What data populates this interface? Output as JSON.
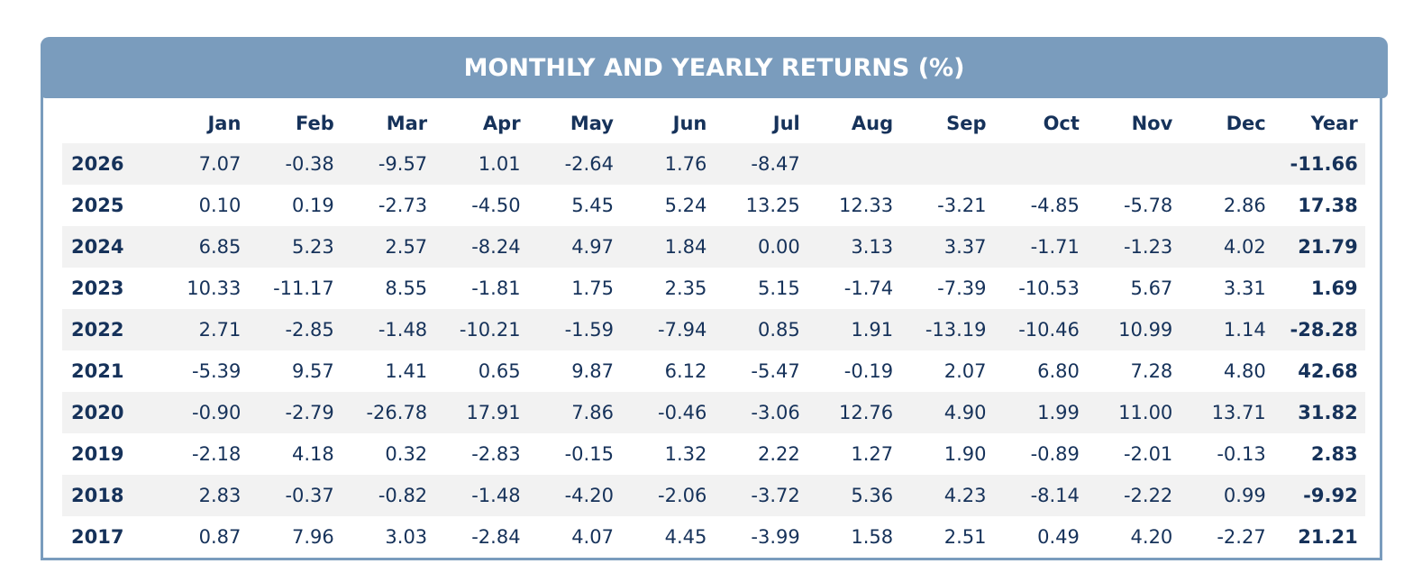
{
  "title": "MONTHLY AND YEARLY RETURNS (%)",
  "columns": [
    "",
    "Jan",
    "Feb",
    "Mar",
    "Apr",
    "May",
    "Jun",
    "Jul",
    "Aug",
    "Sep",
    "Oct",
    "Nov",
    "Dec",
    "Year"
  ],
  "rows": [
    {
      "year": "2026",
      "values": [
        "7.07",
        "-0.38",
        "-9.57",
        "1.01",
        "-2.64",
        "1.76",
        "-8.47",
        "",
        "",
        "",
        "",
        ""
      ],
      "total": "-11.66"
    },
    {
      "year": "2025",
      "values": [
        "0.10",
        "0.19",
        "-2.73",
        "-4.50",
        "5.45",
        "5.24",
        "13.25",
        "12.33",
        "-3.21",
        "-4.85",
        "-5.78",
        "2.86"
      ],
      "total": "17.38"
    },
    {
      "year": "2024",
      "values": [
        "6.85",
        "5.23",
        "2.57",
        "-8.24",
        "4.97",
        "1.84",
        "0.00",
        "3.13",
        "3.37",
        "-1.71",
        "-1.23",
        "4.02"
      ],
      "total": "21.79"
    },
    {
      "year": "2023",
      "values": [
        "10.33",
        "-11.17",
        "8.55",
        "-1.81",
        "1.75",
        "2.35",
        "5.15",
        "-1.74",
        "-7.39",
        "-10.53",
        "5.67",
        "3.31"
      ],
      "total": "1.69"
    },
    {
      "year": "2022",
      "values": [
        "2.71",
        "-2.85",
        "-1.48",
        "-10.21",
        "-1.59",
        "-7.94",
        "0.85",
        "1.91",
        "-13.19",
        "-10.46",
        "10.99",
        "1.14"
      ],
      "total": "-28.28"
    },
    {
      "year": "2021",
      "values": [
        "-5.39",
        "9.57",
        "1.41",
        "0.65",
        "9.87",
        "6.12",
        "-5.47",
        "-0.19",
        "2.07",
        "6.80",
        "7.28",
        "4.80"
      ],
      "total": "42.68"
    },
    {
      "year": "2020",
      "values": [
        "-0.90",
        "-2.79",
        "-26.78",
        "17.91",
        "7.86",
        "-0.46",
        "-3.06",
        "12.76",
        "4.90",
        "1.99",
        "11.00",
        "13.71"
      ],
      "total": "31.82"
    },
    {
      "year": "2019",
      "values": [
        "-2.18",
        "4.18",
        "0.32",
        "-2.83",
        "-0.15",
        "1.32",
        "2.22",
        "1.27",
        "1.90",
        "-0.89",
        "-2.01",
        "-0.13"
      ],
      "total": "2.83"
    },
    {
      "year": "2018",
      "values": [
        "2.83",
        "-0.37",
        "-0.82",
        "-1.48",
        "-4.20",
        "-2.06",
        "-3.72",
        "5.36",
        "4.23",
        "-8.14",
        "-2.22",
        "0.99"
      ],
      "total": "-9.92"
    },
    {
      "year": "2017",
      "values": [
        "0.87",
        "7.96",
        "3.03",
        "-2.84",
        "4.07",
        "4.45",
        "-3.99",
        "1.58",
        "2.51",
        "0.49",
        "4.20",
        "-2.27"
      ],
      "total": "21.21"
    }
  ],
  "colors": {
    "header_bg": "#7a9cbd",
    "text": "#16325a",
    "stripe": "#f2f2f2"
  }
}
